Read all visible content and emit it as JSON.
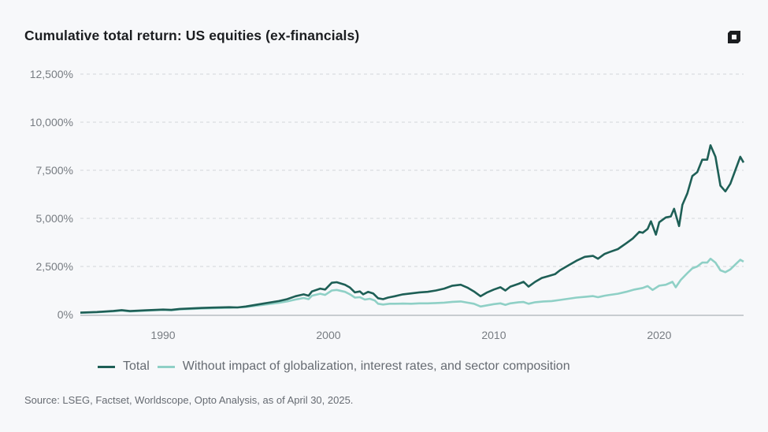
{
  "header": {
    "title": "Cumulative total return: US equities (ex-financials)",
    "logo_icon": "brand-logo-icon"
  },
  "legend": {
    "items": [
      {
        "label": "Total",
        "color": "#1e5f56"
      },
      {
        "label": "Without impact of globalization, interest rates, and sector composition",
        "color": "#8fd0c6"
      }
    ]
  },
  "footer": {
    "source": "Source: LSEG, Factset, Worldscope, Opto Analysis, as of April 30, 2025."
  },
  "chart_data": {
    "type": "line",
    "title": "Cumulative total return: US equities (ex-financials)",
    "xlabel": "",
    "ylabel": "",
    "xlim": [
      1985,
      2025.1
    ],
    "ylim": [
      0,
      12500
    ],
    "yticks": [
      0,
      2500,
      5000,
      7500,
      10000,
      12500
    ],
    "ytick_labels": [
      "0%",
      "2,500%",
      "5,000%",
      "7,500%",
      "10,000%",
      "12,500%"
    ],
    "xticks": [
      1990,
      2000,
      2010,
      2020
    ],
    "xtick_labels": [
      "1990",
      "2000",
      "2010",
      "2020"
    ],
    "grid": "horizontal-dashed",
    "legend_position": "bottom",
    "series": [
      {
        "name": "Total",
        "color": "#1e5f56",
        "points": [
          [
            1985.0,
            100
          ],
          [
            1986.0,
            130
          ],
          [
            1987.0,
            190
          ],
          [
            1987.5,
            230
          ],
          [
            1988.0,
            180
          ],
          [
            1989.0,
            220
          ],
          [
            1990.0,
            260
          ],
          [
            1990.5,
            240
          ],
          [
            1991.0,
            290
          ],
          [
            1992.0,
            330
          ],
          [
            1993.0,
            360
          ],
          [
            1994.0,
            380
          ],
          [
            1994.5,
            370
          ],
          [
            1995.0,
            420
          ],
          [
            1996.0,
            560
          ],
          [
            1997.0,
            700
          ],
          [
            1997.5,
            800
          ],
          [
            1998.0,
            950
          ],
          [
            1998.5,
            1050
          ],
          [
            1998.8,
            980
          ],
          [
            1999.0,
            1200
          ],
          [
            1999.5,
            1350
          ],
          [
            1999.8,
            1300
          ],
          [
            2000.2,
            1650
          ],
          [
            2000.5,
            1680
          ],
          [
            2001.0,
            1550
          ],
          [
            2001.3,
            1400
          ],
          [
            2001.6,
            1150
          ],
          [
            2001.9,
            1200
          ],
          [
            2002.1,
            1050
          ],
          [
            2002.4,
            1180
          ],
          [
            2002.7,
            1100
          ],
          [
            2003.0,
            850
          ],
          [
            2003.3,
            800
          ],
          [
            2003.6,
            880
          ],
          [
            2004.0,
            950
          ],
          [
            2004.5,
            1050
          ],
          [
            2005.0,
            1100
          ],
          [
            2005.5,
            1150
          ],
          [
            2006.0,
            1180
          ],
          [
            2006.5,
            1250
          ],
          [
            2007.0,
            1350
          ],
          [
            2007.5,
            1500
          ],
          [
            2008.0,
            1550
          ],
          [
            2008.4,
            1400
          ],
          [
            2008.8,
            1200
          ],
          [
            2009.2,
            950
          ],
          [
            2009.6,
            1150
          ],
          [
            2010.0,
            1300
          ],
          [
            2010.4,
            1420
          ],
          [
            2010.7,
            1250
          ],
          [
            2011.0,
            1450
          ],
          [
            2011.5,
            1600
          ],
          [
            2011.8,
            1700
          ],
          [
            2012.1,
            1450
          ],
          [
            2012.5,
            1700
          ],
          [
            2012.9,
            1900
          ],
          [
            2013.3,
            2000
          ],
          [
            2013.7,
            2100
          ],
          [
            2014.0,
            2300
          ],
          [
            2014.5,
            2550
          ],
          [
            2015.0,
            2800
          ],
          [
            2015.5,
            3000
          ],
          [
            2016.0,
            3050
          ],
          [
            2016.3,
            2900
          ],
          [
            2016.7,
            3150
          ],
          [
            2017.0,
            3250
          ],
          [
            2017.5,
            3400
          ],
          [
            2018.0,
            3700
          ],
          [
            2018.4,
            3950
          ],
          [
            2018.8,
            4300
          ],
          [
            2019.0,
            4250
          ],
          [
            2019.3,
            4450
          ],
          [
            2019.5,
            4850
          ],
          [
            2019.8,
            4150
          ],
          [
            2020.0,
            4800
          ],
          [
            2020.4,
            5050
          ],
          [
            2020.7,
            5100
          ],
          [
            2020.9,
            5500
          ],
          [
            2021.2,
            4600
          ],
          [
            2021.4,
            5700
          ],
          [
            2021.7,
            6300
          ],
          [
            2022.0,
            7200
          ],
          [
            2022.3,
            7400
          ],
          [
            2022.6,
            8050
          ],
          [
            2022.9,
            8050
          ],
          [
            2023.1,
            8800
          ],
          [
            2023.4,
            8200
          ],
          [
            2023.7,
            6700
          ],
          [
            2024.0,
            6400
          ],
          [
            2024.3,
            6800
          ],
          [
            2024.6,
            7500
          ],
          [
            2024.9,
            8200
          ],
          [
            2025.1,
            7900
          ]
        ]
      },
      {
        "name": "Without impact of globalization, interest rates, and sector composition",
        "color": "#8fd0c6",
        "points": [
          [
            1985.0,
            90
          ],
          [
            1986.0,
            120
          ],
          [
            1987.0,
            170
          ],
          [
            1987.5,
            210
          ],
          [
            1988.0,
            160
          ],
          [
            1989.0,
            200
          ],
          [
            1990.0,
            240
          ],
          [
            1990.5,
            220
          ],
          [
            1991.0,
            270
          ],
          [
            1992.0,
            300
          ],
          [
            1993.0,
            330
          ],
          [
            1994.0,
            350
          ],
          [
            1995.0,
            390
          ],
          [
            1996.0,
            500
          ],
          [
            1997.0,
            610
          ],
          [
            1997.5,
            680
          ],
          [
            1998.0,
            780
          ],
          [
            1998.5,
            860
          ],
          [
            1998.8,
            800
          ],
          [
            1999.0,
            980
          ],
          [
            1999.5,
            1080
          ],
          [
            1999.8,
            1020
          ],
          [
            2000.2,
            1250
          ],
          [
            2000.5,
            1280
          ],
          [
            2001.0,
            1180
          ],
          [
            2001.3,
            1050
          ],
          [
            2001.6,
            880
          ],
          [
            2001.9,
            900
          ],
          [
            2002.2,
            780
          ],
          [
            2002.5,
            820
          ],
          [
            2002.8,
            730
          ],
          [
            2003.0,
            560
          ],
          [
            2003.3,
            520
          ],
          [
            2003.7,
            560
          ],
          [
            2004.0,
            560
          ],
          [
            2004.5,
            570
          ],
          [
            2005.0,
            560
          ],
          [
            2005.5,
            580
          ],
          [
            2006.0,
            580
          ],
          [
            2006.5,
            600
          ],
          [
            2007.0,
            620
          ],
          [
            2007.5,
            660
          ],
          [
            2008.0,
            680
          ],
          [
            2008.4,
            620
          ],
          [
            2008.8,
            560
          ],
          [
            2009.2,
            420
          ],
          [
            2009.6,
            480
          ],
          [
            2010.0,
            540
          ],
          [
            2010.4,
            580
          ],
          [
            2010.7,
            500
          ],
          [
            2011.0,
            580
          ],
          [
            2011.5,
            640
          ],
          [
            2011.8,
            650
          ],
          [
            2012.1,
            560
          ],
          [
            2012.5,
            640
          ],
          [
            2013.0,
            680
          ],
          [
            2013.5,
            700
          ],
          [
            2014.0,
            760
          ],
          [
            2014.5,
            820
          ],
          [
            2015.0,
            880
          ],
          [
            2015.5,
            920
          ],
          [
            2016.0,
            960
          ],
          [
            2016.3,
            900
          ],
          [
            2016.7,
            980
          ],
          [
            2017.0,
            1020
          ],
          [
            2017.5,
            1080
          ],
          [
            2018.0,
            1180
          ],
          [
            2018.5,
            1300
          ],
          [
            2019.0,
            1380
          ],
          [
            2019.3,
            1480
          ],
          [
            2019.6,
            1280
          ],
          [
            2020.0,
            1500
          ],
          [
            2020.4,
            1550
          ],
          [
            2020.8,
            1700
          ],
          [
            2021.0,
            1420
          ],
          [
            2021.3,
            1800
          ],
          [
            2021.7,
            2150
          ],
          [
            2022.0,
            2400
          ],
          [
            2022.3,
            2500
          ],
          [
            2022.6,
            2700
          ],
          [
            2022.9,
            2700
          ],
          [
            2023.1,
            2900
          ],
          [
            2023.4,
            2700
          ],
          [
            2023.7,
            2300
          ],
          [
            2024.0,
            2200
          ],
          [
            2024.3,
            2350
          ],
          [
            2024.6,
            2600
          ],
          [
            2024.9,
            2850
          ],
          [
            2025.1,
            2750
          ]
        ]
      }
    ]
  }
}
